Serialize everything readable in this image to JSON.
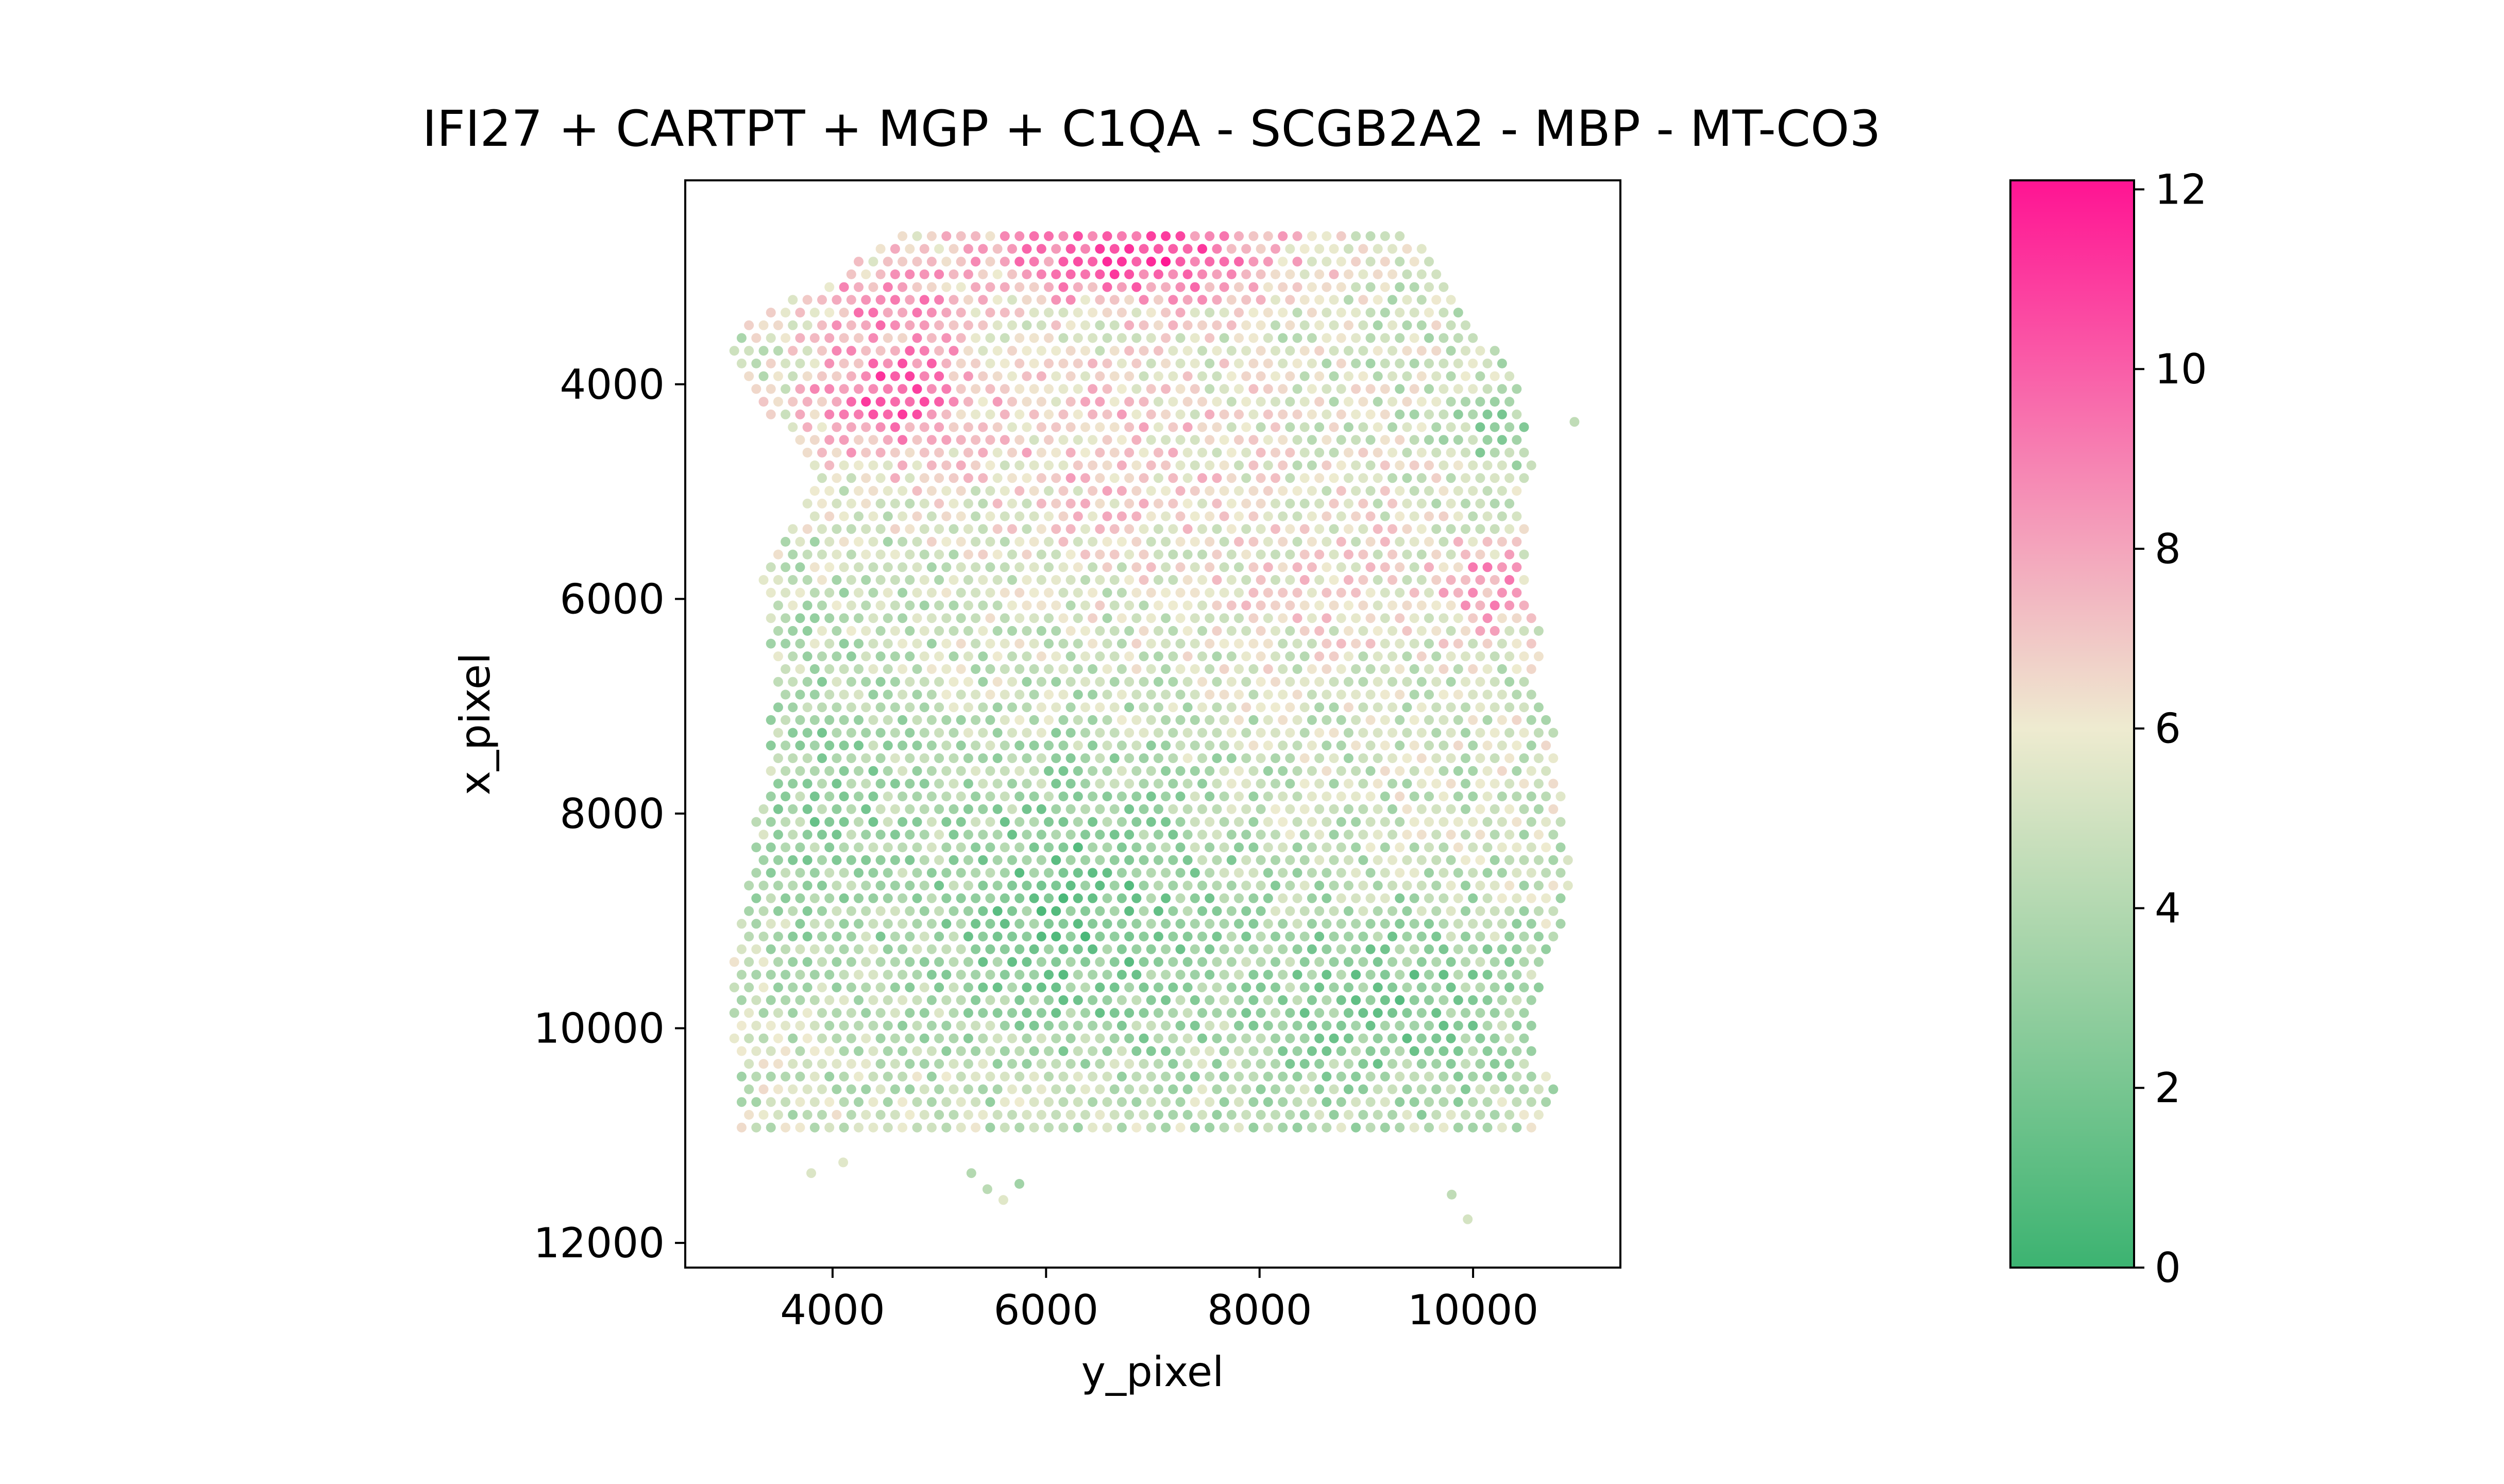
{
  "chart_data": {
    "type": "scatter",
    "title": "IFI27 + CARTPT + MGP + C1QA - SCGB2A2 - MBP - MT-CO3",
    "xlabel": "y_pixel",
    "ylabel": "x_pixel",
    "xlim": [
      2620,
      11380
    ],
    "ylim": [
      12230,
      2100
    ],
    "y_inverted": true,
    "xticks": [
      4000,
      6000,
      8000,
      10000
    ],
    "xtick_labels": [
      "4000",
      "6000",
      "8000",
      "10000"
    ],
    "yticks": [
      4000,
      6000,
      8000,
      10000,
      12000
    ],
    "ytick_labels": [
      "4000",
      "6000",
      "8000",
      "10000",
      "12000"
    ],
    "colorbar": {
      "range": [
        0,
        12.1
      ],
      "ticks": [
        0,
        2,
        4,
        6,
        8,
        10,
        12
      ],
      "tick_labels": [
        "0",
        "2",
        "4",
        "6",
        "8",
        "10",
        "12"
      ],
      "colors": [
        "#3cb371",
        "#eeebd0",
        "#ff1493"
      ],
      "color_stops": [
        0,
        6,
        12.1
      ]
    },
    "grid": false,
    "spot_spacing": 137,
    "tissue_rows": [
      {
        "y": 2620,
        "x_min": 4530,
        "x_max": 9400
      },
      {
        "y": 2860,
        "x_min": 4200,
        "x_max": 9650
      },
      {
        "y": 3100,
        "x_min": 3900,
        "x_max": 9820
      },
      {
        "y": 3340,
        "x_min": 3300,
        "x_max": 9920
      },
      {
        "y": 3580,
        "x_min": 3000,
        "x_max": 10050
      },
      {
        "y": 3820,
        "x_min": 3050,
        "x_max": 10430
      },
      {
        "y": 4060,
        "x_min": 3200,
        "x_max": 10450
      },
      {
        "y": 4300,
        "x_min": 3400,
        "x_max": 10500
      },
      {
        "y": 4540,
        "x_min": 3700,
        "x_max": 10550
      },
      {
        "y": 4780,
        "x_min": 3800,
        "x_max": 10550
      },
      {
        "y": 5020,
        "x_min": 3750,
        "x_max": 10450
      },
      {
        "y": 5260,
        "x_min": 3700,
        "x_max": 10500
      },
      {
        "y": 5500,
        "x_min": 3400,
        "x_max": 10500
      },
      {
        "y": 5740,
        "x_min": 3300,
        "x_max": 10550
      },
      {
        "y": 5980,
        "x_min": 3350,
        "x_max": 10500
      },
      {
        "y": 6220,
        "x_min": 3400,
        "x_max": 10600
      },
      {
        "y": 6460,
        "x_min": 3400,
        "x_max": 10650
      },
      {
        "y": 6700,
        "x_min": 3450,
        "x_max": 10550
      },
      {
        "y": 6940,
        "x_min": 3500,
        "x_max": 10650
      },
      {
        "y": 7180,
        "x_min": 3400,
        "x_max": 10750
      },
      {
        "y": 7420,
        "x_min": 3350,
        "x_max": 10800
      },
      {
        "y": 7660,
        "x_min": 3400,
        "x_max": 10800
      },
      {
        "y": 7900,
        "x_min": 3300,
        "x_max": 10850
      },
      {
        "y": 8140,
        "x_min": 3250,
        "x_max": 10850
      },
      {
        "y": 8380,
        "x_min": 3250,
        "x_max": 10900
      },
      {
        "y": 8620,
        "x_min": 3200,
        "x_max": 10900
      },
      {
        "y": 8860,
        "x_min": 3150,
        "x_max": 10900
      },
      {
        "y": 9100,
        "x_min": 3100,
        "x_max": 10800
      },
      {
        "y": 9340,
        "x_min": 3050,
        "x_max": 10750
      },
      {
        "y": 9580,
        "x_min": 3050,
        "x_max": 10650
      },
      {
        "y": 9820,
        "x_min": 3000,
        "x_max": 10600
      },
      {
        "y": 10060,
        "x_min": 3050,
        "x_max": 10550
      },
      {
        "y": 10300,
        "x_min": 3100,
        "x_max": 10550
      },
      {
        "y": 10540,
        "x_min": 3150,
        "x_max": 10800
      },
      {
        "y": 10780,
        "x_min": 3100,
        "x_max": 10700
      },
      {
        "y": 11020,
        "x_min": 3000,
        "x_max": 10650
      }
    ],
    "isolated_spots": [
      {
        "x": 10950,
        "y": 4350
      },
      {
        "x": 9800,
        "y": 11550
      },
      {
        "x": 9950,
        "y": 11780
      },
      {
        "x": 3800,
        "y": 11350
      },
      {
        "x": 4100,
        "y": 11250
      },
      {
        "x": 5300,
        "y": 11350
      },
      {
        "x": 5450,
        "y": 11500
      },
      {
        "x": 5600,
        "y": 11600
      },
      {
        "x": 5750,
        "y": 11450
      }
    ],
    "value_regions": [
      {
        "x": 6800,
        "y": 2800,
        "rx": 1600,
        "ry": 500,
        "value": 11.0
      },
      {
        "x": 4600,
        "y": 4100,
        "rx": 900,
        "ry": 700,
        "value": 10.5
      },
      {
        "x": 4500,
        "y": 3200,
        "rx": 700,
        "ry": 400,
        "value": 9.0
      },
      {
        "x": 10100,
        "y": 5900,
        "rx": 500,
        "ry": 500,
        "value": 9.0
      },
      {
        "x": 6600,
        "y": 4600,
        "rx": 1600,
        "ry": 1200,
        "value": 7.0
      },
      {
        "x": 8600,
        "y": 5800,
        "rx": 1400,
        "ry": 1100,
        "value": 6.3
      },
      {
        "x": 6300,
        "y": 8900,
        "rx": 1700,
        "ry": 1600,
        "value": 2.0
      },
      {
        "x": 9200,
        "y": 9800,
        "rx": 1500,
        "ry": 1100,
        "value": 2.3
      },
      {
        "x": 10200,
        "y": 4400,
        "rx": 400,
        "ry": 400,
        "value": 3.0
      },
      {
        "x": 4000,
        "y": 8000,
        "rx": 900,
        "ry": 1700,
        "value": 3.0
      }
    ],
    "value_baseline": 5.0
  }
}
